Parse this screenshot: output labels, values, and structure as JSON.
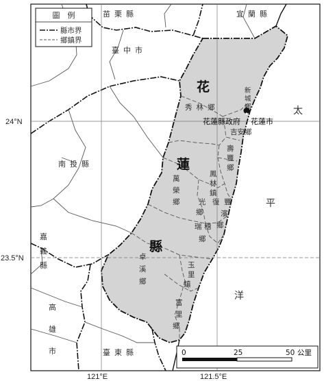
{
  "legend": {
    "title": "圖　例",
    "county_boundary": "縣市界",
    "township_boundary": "鄉鎮界"
  },
  "county_label": [
    "花",
    "蓮",
    "縣"
  ],
  "neighbors": {
    "miaoli": "苗栗縣",
    "yilan": "宜蘭縣",
    "taichung": "臺中市",
    "nantou": "南投縣",
    "chiayi": [
      "嘉",
      "義",
      "縣"
    ],
    "kaohsiung": [
      "高",
      "雄",
      "市"
    ],
    "taitung": "臺東縣"
  },
  "ocean": [
    "太",
    "平",
    "洋"
  ],
  "townships": {
    "xiulin": "秀林鄉",
    "xincheng": [
      "新",
      "城",
      "鄉"
    ],
    "hualien_city": "花蓮市",
    "ji_an": "吉安鄉",
    "shoufeng": [
      "壽",
      "豐",
      "鄉"
    ],
    "fenglin": [
      "鳳",
      "林",
      "鎮"
    ],
    "wanrong": [
      "萬",
      "榮",
      "鄉"
    ],
    "guangfu": [
      "光",
      "復",
      "鄉"
    ],
    "fengbin": [
      "豐",
      "濱",
      "鄉"
    ],
    "ruisui": [
      "瑞",
      "穗",
      "鄉"
    ],
    "zhuoxi": [
      "卓",
      "溪",
      "鄉"
    ],
    "yuli": [
      "玉",
      "里",
      "鎮"
    ],
    "fuli": [
      "富",
      "里",
      "鄉"
    ]
  },
  "seat_label": "花蓮縣政府",
  "graticule": {
    "lat_24": "24°N",
    "lat_23_5": "23.5°N",
    "lon_121": "121°E",
    "lon_121_5": "121.5°E"
  },
  "scale_bar": {
    "tick_0": "0",
    "tick_25": "25",
    "tick_50": "50",
    "unit": "公里"
  },
  "colors": {
    "county_fill": "#d4d4d4",
    "land": "#ffffff",
    "lines": "#111111"
  }
}
